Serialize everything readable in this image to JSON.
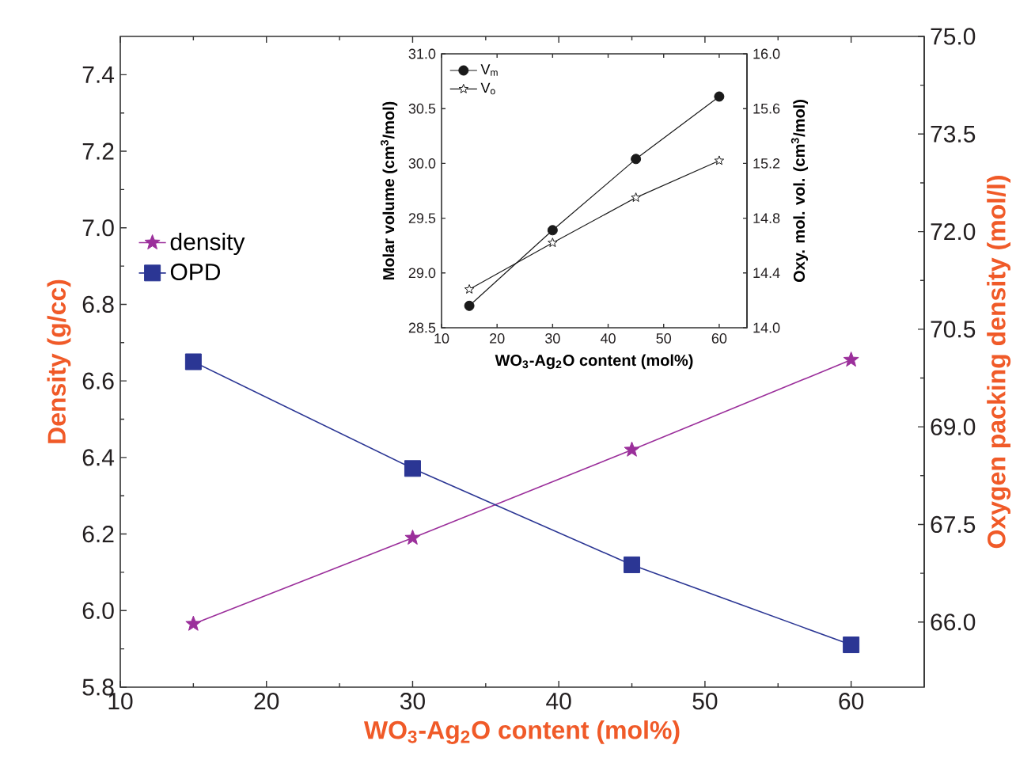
{
  "chart_data": [
    {
      "type": "line",
      "xlabel": "WO$_{3}$-Ag$_{2}$O content (mol%)",
      "ylabel": "Density (g/cc)",
      "y2label": "Oxygen packing density (mol/l)",
      "x": [
        15,
        30,
        45,
        60
      ],
      "series": [
        {
          "name": "density",
          "color": "#9b2f9b",
          "marker": "star",
          "values": [
            5.965,
            6.19,
            6.42,
            6.655
          ]
        },
        {
          "name": "OPD",
          "color": "#2b3694",
          "marker": "square",
          "axis": "y2",
          "values": [
            70.0,
            68.36,
            66.88,
            65.65
          ]
        }
      ],
      "xlim": [
        10,
        65
      ],
      "xticks": [
        10,
        20,
        30,
        40,
        50,
        60
      ],
      "ylim": [
        5.8,
        7.5
      ],
      "yticks": [
        5.8,
        {
          "value": 6,
          "label": "6.0"
        },
        6.2,
        6.4,
        6.6,
        6.8,
        {
          "value": 7,
          "label": "7.0"
        },
        7.2,
        7.4
      ],
      "y2lim": [
        65,
        75
      ],
      "y2ticks": [
        {
          "value": 66,
          "label": "66.0"
        },
        67.5,
        {
          "value": 69,
          "label": "69.0"
        },
        70.5,
        {
          "value": 72,
          "label": "72.0"
        },
        73.5,
        {
          "value": 75,
          "label": "75.0"
        }
      ],
      "legend": "left",
      "grid": false
    },
    {
      "type": "line",
      "xlabel": "WO$_{3}$-Ag$_{2}$O content (mol%)",
      "ylabel": "Molar volume (cm$^{3}$/mol)",
      "y2label": "Oxy. mol. vol. (cm$^{3}$/mol)",
      "x": [
        15,
        30,
        45,
        60
      ],
      "series": [
        {
          "name": "V$_{m}$",
          "color": "#1a1a1a",
          "marker": "circle",
          "values": [
            28.7,
            29.39,
            30.04,
            30.61
          ]
        },
        {
          "name": "V$_{o}$",
          "color": "#1a1a1a",
          "marker": "star",
          "axis": "y2",
          "values": [
            14.28,
            14.62,
            14.95,
            15.22
          ]
        }
      ],
      "xlim": [
        10,
        65
      ],
      "xticks": [
        10,
        20,
        30,
        40,
        50,
        60
      ],
      "ylim": [
        28.5,
        31
      ],
      "yticks": [
        28.5,
        {
          "value": 29,
          "label": "29.0"
        },
        29.5,
        {
          "value": 30,
          "label": "30.0"
        },
        30.5,
        {
          "value": 31,
          "label": "31.0"
        }
      ],
      "y2lim": [
        14,
        16
      ],
      "y2ticks": [
        {
          "value": 14,
          "label": "14.0"
        },
        14.4,
        14.8,
        15.2,
        15.6,
        {
          "value": 16,
          "label": "16.0"
        }
      ],
      "legend": "top left",
      "grid": false
    }
  ]
}
